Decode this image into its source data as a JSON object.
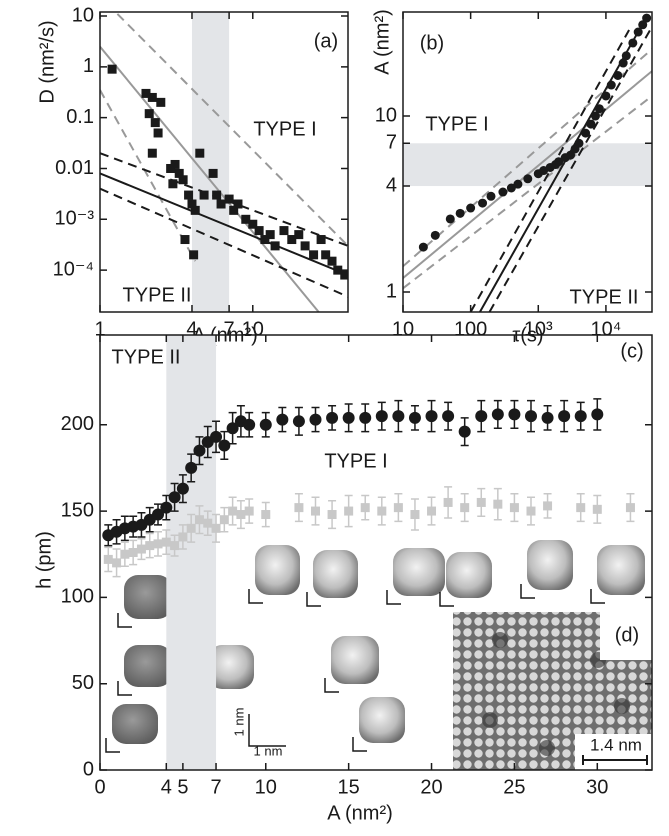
{
  "chart_data": [
    {
      "type": "scatter",
      "xlabel": "A (nm²)",
      "ylabel": "D (nm²/s)",
      "xlog": true,
      "ylog": true,
      "xlim": [
        1,
        42
      ],
      "ylim": [
        1.5e-05,
        12
      ],
      "xticks": [
        1,
        4,
        7,
        10
      ],
      "yticks": [
        {
          "value": 10,
          "label": "10"
        },
        {
          "value": 1,
          "label": "1"
        },
        {
          "value": 0.1,
          "label": "0.1"
        },
        {
          "value": 0.01,
          "label": "0.01"
        },
        {
          "value": 0.001,
          "label": "10⁻³"
        },
        {
          "value": 0.0001,
          "label": "10⁻⁴"
        }
      ],
      "band": {
        "axis": "x",
        "range": [
          4,
          7
        ],
        "color": "#e3e5e8"
      },
      "annotations": [
        "(a)",
        "TYPE I",
        "TYPE II"
      ],
      "series": [
        {
          "color": "#1a1a1a",
          "marker": "square",
          "x": [
            1.2,
            2.0,
            2.2,
            2.3,
            2.1,
            2.4,
            2.2,
            2.5,
            2.9,
            3.1,
            3.3,
            3.0,
            3.5,
            3.8,
            4.0,
            4.2,
            4.5,
            4.8,
            5.5,
            5.8,
            6.2,
            7.0,
            7.5,
            8.0,
            9.0,
            10,
            11,
            12,
            13,
            14,
            16,
            18,
            20,
            22,
            25,
            28,
            30,
            33,
            36,
            40,
            3.6,
            4.1
          ],
          "values": [
            0.9,
            0.3,
            0.25,
            0.08,
            0.12,
            0.05,
            0.02,
            0.2,
            0.01,
            0.012,
            0.008,
            0.005,
            0.006,
            0.003,
            0.002,
            0.0015,
            0.02,
            0.003,
            0.008,
            0.003,
            0.002,
            0.0025,
            0.0015,
            0.002,
            0.001,
            0.0008,
            0.0006,
            0.0004,
            0.0005,
            0.0003,
            0.0006,
            0.0004,
            0.0005,
            0.0003,
            0.0002,
            0.0004,
            0.0002,
            0.00015,
            0.0001,
            8e-05,
            0.0004,
            0.0002
          ]
        }
      ],
      "fits": [
        {
          "color": "#999999",
          "dash": false,
          "x": [
            1,
            27
          ],
          "values": [
            2.5,
            1.5e-05
          ]
        },
        {
          "color": "#999999",
          "dash": true,
          "x": [
            1.3,
            42
          ],
          "values": [
            11,
            0.0003
          ]
        },
        {
          "color": "#999999",
          "dash": true,
          "x": [
            1,
            4.2
          ],
          "values": [
            0.35,
            0.00015
          ]
        },
        {
          "color": "#1a1a1a",
          "dash": false,
          "x": [
            1,
            42
          ],
          "values": [
            0.008,
            8e-05
          ]
        },
        {
          "color": "#1a1a1a",
          "dash": true,
          "x": [
            1,
            42
          ],
          "values": [
            0.02,
            0.0003
          ]
        },
        {
          "color": "#1a1a1a",
          "dash": true,
          "x": [
            1,
            42
          ],
          "values": [
            0.004,
            3e-05
          ]
        }
      ]
    },
    {
      "type": "scatter",
      "xlabel": "τ(s)",
      "ylabel": "A (nm²)",
      "xlog": true,
      "ylog": true,
      "xlim": [
        10,
        48000
      ],
      "ylim": [
        0.77,
        39
      ],
      "xticks": [
        10,
        100,
        {
          "value": 1000,
          "label": "10³"
        },
        {
          "value": 10000,
          "label": "10⁴"
        }
      ],
      "yticks": [
        1,
        4,
        7,
        10
      ],
      "band": {
        "axis": "y",
        "range": [
          4,
          7
        ],
        "color": "#e3e5e8"
      },
      "annotations": [
        "(b)",
        "TYPE I",
        "TYPE II"
      ],
      "series": [
        {
          "color": "#1a1a1a",
          "marker": "circle",
          "x": [
            20,
            30,
            50,
            70,
            100,
            150,
            200,
            300,
            400,
            500,
            700,
            1000,
            1200,
            1500,
            1800,
            2000,
            2500,
            3000,
            3500,
            4000,
            5000,
            6000,
            7000,
            8000,
            10000,
            12000,
            15000,
            18000,
            20000,
            25000,
            30000,
            35000,
            40000
          ],
          "values": [
            1.8,
            2.1,
            2.6,
            2.8,
            3.0,
            3.2,
            3.5,
            3.7,
            3.9,
            4.1,
            4.4,
            4.7,
            4.9,
            5.1,
            5.3,
            5.5,
            5.8,
            6,
            6.5,
            7,
            8,
            9,
            10,
            11,
            13,
            15,
            17,
            20,
            22,
            26,
            30,
            33,
            36
          ]
        }
      ],
      "fits": [
        {
          "color": "#999999",
          "dash": false,
          "x": [
            10,
            48000
          ],
          "values": [
            1.2,
            18
          ]
        },
        {
          "color": "#999999",
          "dash": true,
          "x": [
            10,
            48000
          ],
          "values": [
            1.4,
            24
          ]
        },
        {
          "color": "#999999",
          "dash": true,
          "x": [
            10,
            48000
          ],
          "values": [
            1.05,
            13
          ]
        },
        {
          "color": "#1a1a1a",
          "dash": false,
          "x": [
            137,
            31000
          ],
          "values": [
            0.77,
            30.8
          ]
        },
        {
          "color": "#1a1a1a",
          "dash": true,
          "x": [
            100,
            22000
          ],
          "values": [
            0.77,
            30.8
          ]
        },
        {
          "color": "#1a1a1a",
          "dash": true,
          "x": [
            190,
            45000
          ],
          "values": [
            0.77,
            30.8
          ]
        }
      ]
    },
    {
      "type": "scatter",
      "xlabel": "A (nm²)",
      "ylabel": "h (pm)",
      "xlog": false,
      "ylog": false,
      "xlim": [
        0,
        33.3
      ],
      "ylim": [
        0,
        252
      ],
      "xticks": [
        0,
        4,
        5,
        7,
        10,
        15,
        20,
        25,
        30
      ],
      "yticks": [
        0,
        50,
        100,
        150,
        200
      ],
      "band": {
        "axis": "x",
        "range": [
          4,
          7
        ],
        "color": "#e3e5e8"
      },
      "annotations": [
        "(c)",
        "TYPE II",
        "TYPE I",
        "(d)",
        "1.4 nm",
        "1 nm",
        "1 nm"
      ],
      "series": [
        {
          "color": "#1a1a1a",
          "marker": "circle",
          "x": [
            0.5,
            1,
            1.5,
            2,
            2.5,
            3,
            3.5,
            4,
            4.5,
            5,
            5.5,
            6,
            6.5,
            7,
            7.5,
            8,
            8.5,
            9,
            10,
            11,
            12,
            13,
            14,
            15,
            16,
            17,
            18,
            19,
            20,
            21,
            22,
            23,
            24,
            25,
            26,
            27,
            28,
            29,
            30
          ],
          "values": [
            136,
            138,
            140,
            141,
            142,
            145,
            148,
            152,
            158,
            163,
            175,
            185,
            190,
            193,
            188,
            198,
            202,
            200,
            200,
            203,
            202,
            203,
            204,
            204,
            204,
            205,
            205,
            204,
            205,
            205,
            196,
            205,
            206,
            206,
            205,
            204,
            205,
            205,
            206
          ],
          "errors": [
            6,
            7,
            7,
            6,
            7,
            7,
            6,
            7,
            8,
            8,
            8,
            8,
            9,
            9,
            8,
            9,
            9,
            7,
            7,
            7,
            8,
            7,
            7,
            8,
            8,
            8,
            9,
            7,
            9,
            8,
            8,
            9,
            8,
            8,
            9,
            7,
            9,
            8,
            9
          ]
        },
        {
          "color": "#c8c8c8",
          "marker": "square",
          "x": [
            0.5,
            1,
            1.5,
            2,
            2.5,
            3,
            3.5,
            4,
            4.5,
            5,
            5.5,
            6,
            6.5,
            7,
            7.5,
            8,
            8.5,
            9,
            10,
            12,
            13,
            14,
            15,
            16,
            17,
            18,
            19,
            20,
            21,
            22,
            23,
            24,
            25,
            26,
            27,
            29,
            30,
            32
          ],
          "values": [
            122,
            120,
            125,
            126,
            128,
            130,
            131,
            132,
            130,
            135,
            140,
            145,
            143,
            140,
            145,
            150,
            148,
            150,
            148,
            152,
            150,
            148,
            150,
            152,
            150,
            152,
            148,
            150,
            155,
            152,
            155,
            154,
            152,
            150,
            153,
            152,
            151,
            152
          ],
          "errors": [
            7,
            8,
            7,
            7,
            6,
            7,
            7,
            7,
            6,
            7,
            8,
            8,
            7,
            8,
            7,
            8,
            8,
            7,
            7,
            8,
            8,
            8,
            9,
            7,
            8,
            8,
            9,
            8,
            9,
            8,
            8,
            9,
            8,
            8,
            7,
            8,
            8,
            8
          ]
        }
      ]
    }
  ]
}
